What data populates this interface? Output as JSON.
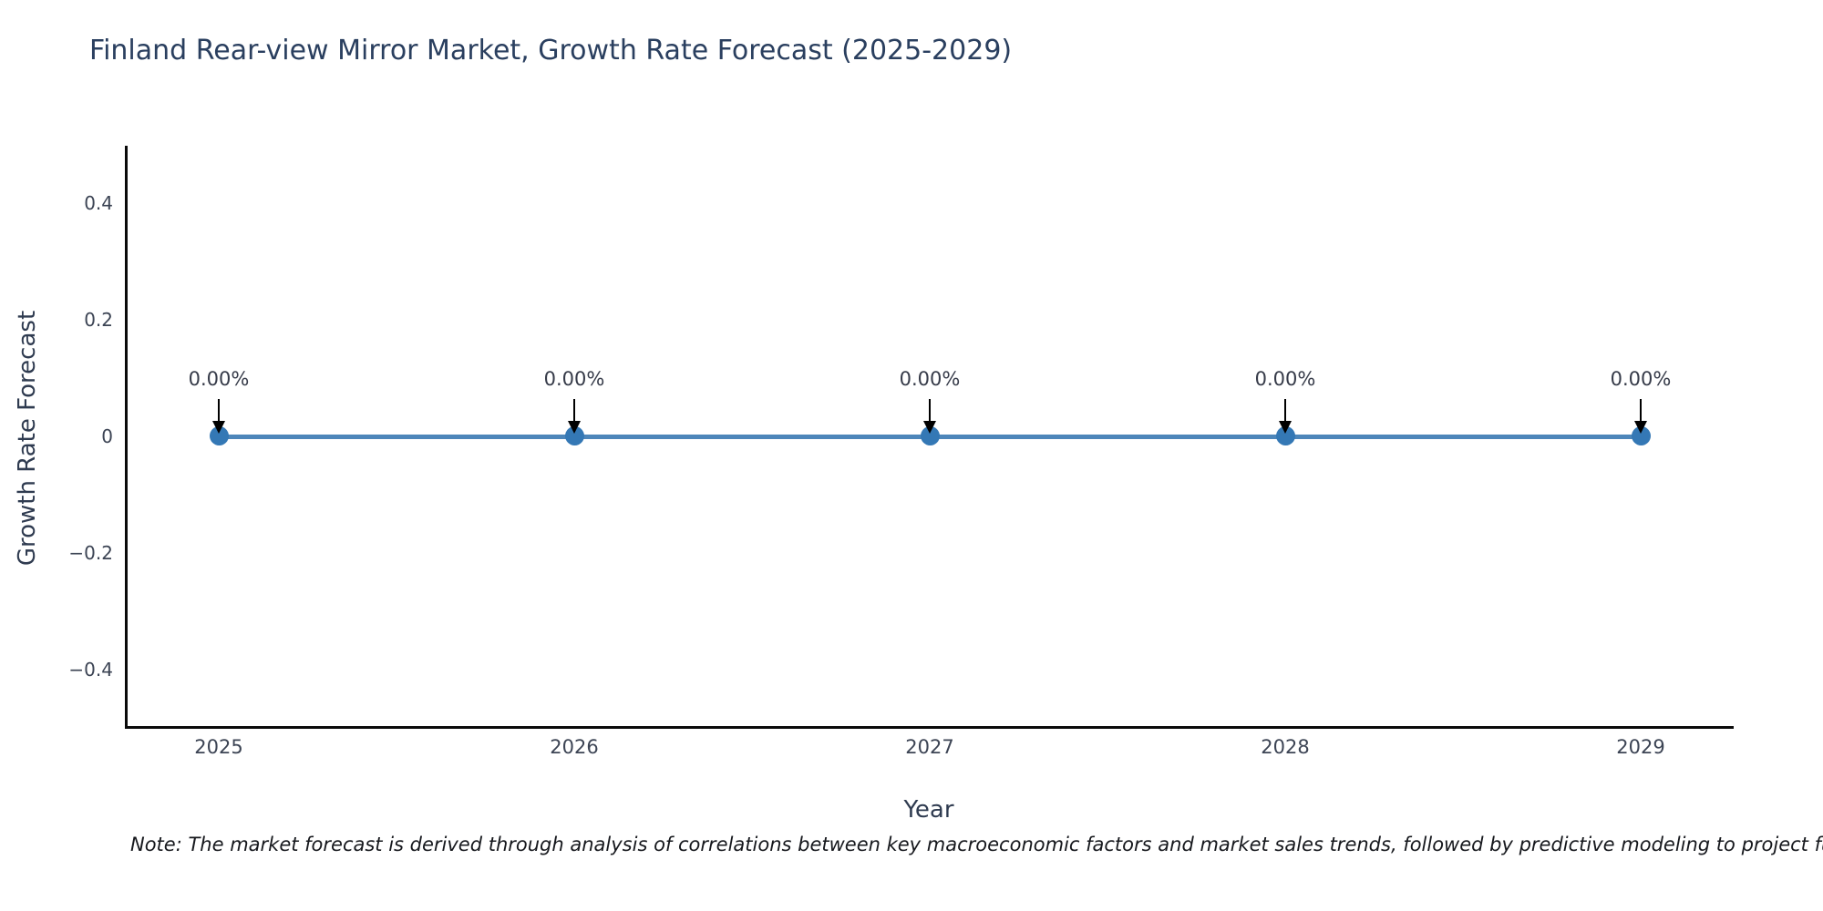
{
  "note": "Note: The market forecast is derived through analysis of correlations between key macroeconomic factors and market sales trends, followed by predictive modeling to project future sales.",
  "colors": {
    "title": "#2a3f5f",
    "axis_title": "#2f3b50",
    "tick": "#3c4454",
    "annotation": "#363b49",
    "note": "#16181d",
    "axis_line": "#0a0a0a",
    "series_line": "#4d86ba",
    "marker": "#3478b5",
    "arrow": "#000000"
  },
  "chart_data": {
    "type": "line",
    "title": "Finland Rear-view Mirror Market, Growth Rate Forecast (2025-2029)",
    "xlabel": "Year",
    "ylabel": "Growth Rate Forecast",
    "x": [
      2025,
      2026,
      2027,
      2028,
      2029
    ],
    "y": [
      0,
      0,
      0,
      0,
      0
    ],
    "point_labels": [
      "0.00%",
      "0.00%",
      "0.00%",
      "0.00%",
      "0.00%"
    ],
    "xtick_labels": [
      "2025",
      "2026",
      "2027",
      "2028",
      "2029"
    ],
    "ytick_values": [
      0.4,
      0.2,
      0,
      -0.2,
      -0.4
    ],
    "ytick_labels": [
      "0.4",
      "0.2",
      "0",
      "−0.2",
      "−0.4"
    ],
    "ylim": [
      -0.5,
      0.5
    ],
    "xlim": [
      2024.74,
      2029.26
    ],
    "grid": false,
    "legend": null,
    "marker_style": "circle",
    "annotation_arrows": true
  }
}
